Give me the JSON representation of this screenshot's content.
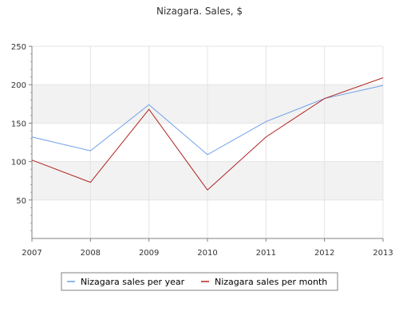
{
  "chart_data": {
    "type": "line",
    "title": "Nizagara. Sales, $",
    "x": [
      "2007",
      "2008",
      "2009",
      "2010",
      "2011",
      "2012",
      "2013"
    ],
    "series": [
      {
        "name": "Nizagara sales per year",
        "color": "#6f9fe8",
        "values": [
          132,
          114,
          174,
          109,
          152,
          182,
          199
        ]
      },
      {
        "name": "Nizagara sales per month",
        "color": "#b22222",
        "values": [
          102,
          73,
          168,
          63,
          132,
          182,
          209
        ]
      }
    ],
    "ylim": [
      0,
      250
    ],
    "yticks": [
      "50",
      "100",
      "150",
      "200",
      "250"
    ],
    "grid": true,
    "alternating_bands": true,
    "legend_position": "bottom"
  }
}
